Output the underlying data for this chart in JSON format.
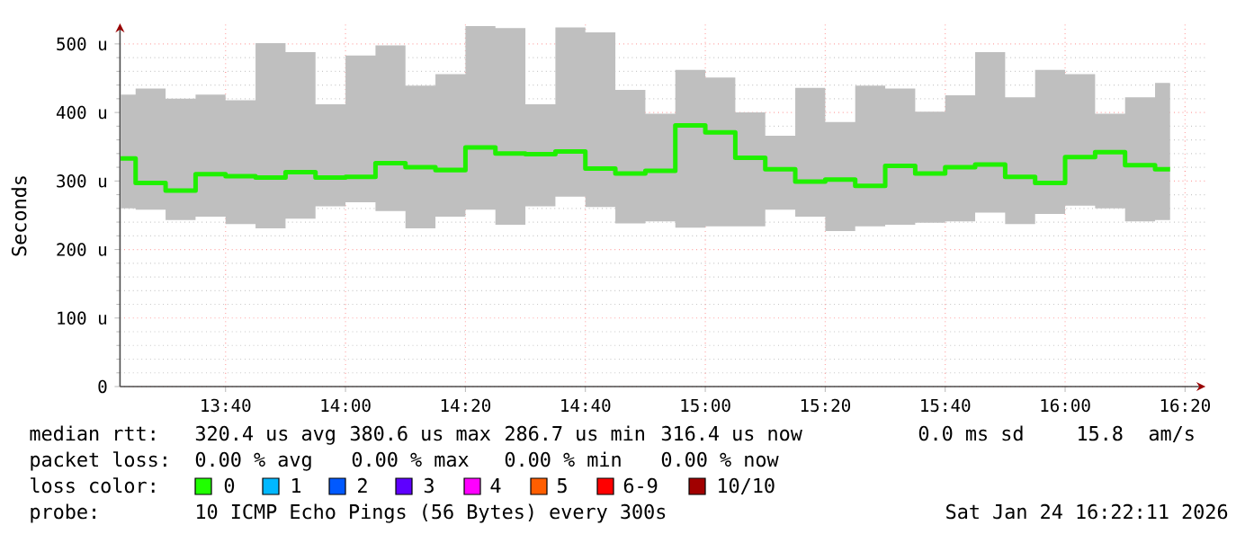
{
  "chart_data": {
    "type": "step",
    "ylabel": "Seconds",
    "xlim": [
      13.3733,
      16.39
    ],
    "ylim": [
      0,
      530
    ],
    "xticks": [
      {
        "value": 13.6667,
        "label": "13:40"
      },
      {
        "value": 14,
        "label": "14:00"
      },
      {
        "value": 14.3333,
        "label": "14:20"
      },
      {
        "value": 14.6667,
        "label": "14:40"
      },
      {
        "value": 15,
        "label": "15:00"
      },
      {
        "value": 15.3333,
        "label": "15:20"
      },
      {
        "value": 15.6667,
        "label": "15:40"
      },
      {
        "value": 16,
        "label": "16:00"
      },
      {
        "value": 16.3333,
        "label": "16:20"
      }
    ],
    "yticks": [
      0,
      {
        "value": 100,
        "label": "100 u"
      },
      {
        "value": 200,
        "label": "200 u"
      },
      {
        "value": 300,
        "label": "300 u"
      },
      {
        "value": 400,
        "label": "400 u"
      },
      {
        "value": 500,
        "label": "500 u"
      }
    ],
    "grid": true,
    "x": [
      13.375,
      13.4583,
      13.5417,
      13.625,
      13.7083,
      13.7917,
      13.875,
      13.9583,
      14.0417,
      14.125,
      14.2083,
      14.2917,
      14.375,
      14.4583,
      14.5417,
      14.625,
      14.7083,
      14.7917,
      14.875,
      14.9583,
      15.0417,
      15.125,
      15.2083,
      15.2917,
      15.375,
      15.4583,
      15.5417,
      15.625,
      15.7083,
      15.7917,
      15.875,
      15.9583,
      16.0417,
      16.125,
      16.2083,
      16.2917
    ],
    "series": [
      {
        "color": "#20f000",
        "values": [
          333,
          297,
          286,
          310,
          307,
          305,
          313,
          305,
          306,
          326,
          320,
          316,
          349,
          340,
          339,
          343,
          318,
          311,
          315,
          381,
          371,
          334,
          317,
          299,
          302,
          293,
          322,
          311,
          320,
          324,
          306,
          297,
          335,
          342,
          323,
          317
        ],
        "lower": [
          260,
          258,
          243,
          248,
          237,
          231,
          245,
          263,
          269,
          256,
          231,
          248,
          258,
          236,
          263,
          277,
          262,
          238,
          241,
          232,
          234,
          234,
          258,
          248,
          227,
          234,
          236,
          239,
          241,
          254,
          237,
          252,
          264,
          260,
          241,
          243
        ],
        "upper": [
          426,
          435,
          420,
          426,
          418,
          501,
          488,
          412,
          483,
          498,
          439,
          456,
          526,
          523,
          412,
          524,
          517,
          433,
          398,
          462,
          451,
          400,
          366,
          436,
          386,
          439,
          435,
          401,
          425,
          488,
          422,
          462,
          456,
          398,
          422,
          443
        ]
      }
    ],
    "annotations": [
      "median rtt:",
      "320.4 us avg",
      "380.6 us max",
      "286.7 us min",
      "316.4 us now",
      "0.0 ms sd",
      "15.8",
      "am/s",
      "packet loss:",
      "0.00 % avg",
      "0.00 % max",
      "0.00 % min",
      "0.00 % now",
      "loss color:",
      "0",
      "1",
      "2",
      "3",
      "4",
      "5",
      "6-9",
      "10/10",
      "probe:",
      "10 ICMP Echo Pings (56 Bytes) every 300s",
      "Sat Jan 24 16:22:11 2026"
    ]
  }
}
